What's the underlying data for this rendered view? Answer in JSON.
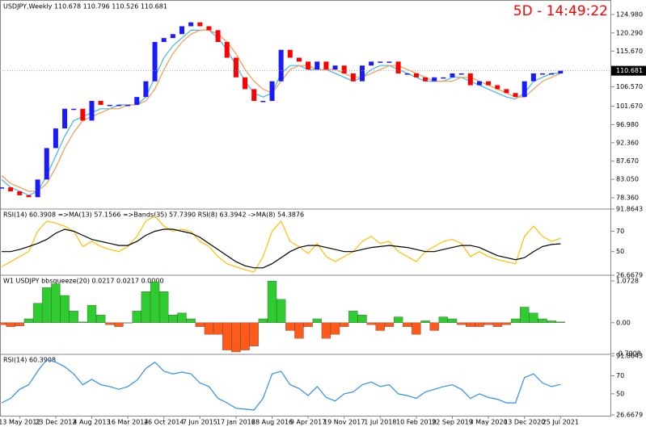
{
  "chart_data": [
    {
      "type": "candlestick",
      "title": "USDJPY,Weekly 110.678 110.796 110.526 110.681",
      "annotation": "5D - 14:49:22",
      "series": [
        {
          "up_color": "#1a1aff",
          "down_color": "#ff0000",
          "values": [
            81,
            80,
            79,
            78.5,
            83,
            91,
            96,
            101,
            101,
            98,
            103,
            102,
            102,
            102,
            102,
            104,
            108,
            118,
            119,
            120,
            122,
            123,
            122,
            121,
            118,
            114,
            109,
            106,
            103,
            103,
            108,
            116,
            114,
            113,
            111,
            113,
            111,
            112,
            110,
            108,
            112,
            113,
            113,
            113,
            110,
            110,
            109,
            108,
            109,
            109,
            110,
            110,
            107,
            108,
            107,
            106,
            105,
            104,
            108,
            110,
            110,
            110,
            110.7
          ]
        },
        {
          "color": "#3fb6ee",
          "values": [
            83,
            81,
            80,
            79,
            80,
            84,
            89,
            94,
            98,
            99,
            100,
            101,
            101,
            102,
            102,
            102,
            104,
            109,
            114,
            117,
            119,
            121,
            121,
            121,
            119,
            116,
            112,
            108,
            105,
            104,
            105,
            110,
            112,
            112,
            111,
            111,
            111,
            110,
            109,
            108,
            109,
            111,
            112,
            112,
            111,
            110,
            109,
            108,
            108,
            108,
            109,
            109,
            108,
            107,
            106,
            105,
            104,
            103.5,
            105,
            108,
            109,
            110,
            110
          ]
        },
        {
          "color": "#f39a4c",
          "values": [
            84,
            82,
            81,
            80,
            80,
            82,
            86,
            91,
            95,
            98,
            99,
            100,
            101,
            101,
            102,
            102,
            103,
            106,
            111,
            115,
            118,
            120,
            121,
            121,
            120,
            118,
            115,
            111,
            108,
            106,
            105,
            108,
            111,
            112,
            112,
            111,
            111,
            111,
            110,
            109,
            109,
            110,
            111,
            112,
            112,
            111,
            110,
            109,
            108,
            108,
            108,
            109,
            109,
            108,
            107,
            106,
            105,
            104,
            104,
            106,
            108,
            109,
            110
          ]
        }
      ],
      "ylim": [
        75.69,
        128.68
      ],
      "yticks": [
        {
          "value": 124.98,
          "label": "124.980"
        },
        {
          "value": 120.29,
          "label": "120.290"
        },
        {
          "value": 115.67,
          "label": "115.670"
        },
        {
          "value": 106.57,
          "label": "106.570"
        },
        {
          "value": 101.67,
          "label": "101.670"
        },
        {
          "value": 96.98,
          "label": "96.980"
        },
        {
          "value": 92.36,
          "label": "92.360"
        },
        {
          "value": 87.67,
          "label": "87.670"
        },
        {
          "value": 83.05,
          "label": "83.050"
        },
        {
          "value": 78.36,
          "label": "78.360"
        }
      ],
      "last_price": {
        "value": 110.681,
        "label": "110.681"
      }
    },
    {
      "type": "line",
      "title": "RSI(14) 60.3908 =>MA(13) 57.1566 =>Bands(35) 57.7390 RSI(8) 63.3942 ->MA(8) 54.3876",
      "series": [
        {
          "color": "#ffc000",
          "values": [
            35,
            40,
            45,
            50,
            70,
            80,
            78,
            75,
            70,
            55,
            60,
            55,
            52,
            50,
            55,
            65,
            80,
            85,
            75,
            70,
            72,
            70,
            60,
            55,
            45,
            38,
            35,
            32,
            30,
            45,
            70,
            80,
            60,
            55,
            48,
            58,
            45,
            40,
            45,
            50,
            60,
            65,
            58,
            60,
            50,
            45,
            40,
            50,
            55,
            60,
            62,
            58,
            45,
            50,
            45,
            42,
            40,
            38,
            65,
            75,
            65,
            60,
            63
          ]
        },
        {
          "color": "#000000",
          "values": [
            50,
            50,
            52,
            55,
            58,
            62,
            68,
            72,
            70,
            66,
            62,
            60,
            58,
            56,
            56,
            60,
            66,
            70,
            72,
            72,
            70,
            68,
            64,
            58,
            52,
            46,
            40,
            36,
            34,
            34,
            38,
            44,
            50,
            54,
            56,
            56,
            54,
            52,
            50,
            50,
            52,
            54,
            55,
            56,
            55,
            54,
            52,
            50,
            50,
            52,
            54,
            56,
            56,
            54,
            50,
            46,
            44,
            42,
            44,
            50,
            55,
            57,
            57.7
          ]
        }
      ],
      "ylim": [
        26.6679,
        91.8643
      ],
      "yticks": [
        91.8643,
        70,
        50,
        26.6679
      ]
    },
    {
      "type": "histogram",
      "title": "W1 USDJPY bbsqueeze(20) 0.0217 0.0217 0.0000",
      "pos_color": "#2ecc2e",
      "neg_color": "#ff5a1a",
      "values": [
        -0.05,
        -0.1,
        -0.08,
        0.1,
        0.5,
        0.9,
        1.0,
        0.7,
        0.3,
        0.02,
        0.45,
        0.2,
        -0.05,
        -0.1,
        0.0,
        0.3,
        0.8,
        1.05,
        0.8,
        0.2,
        0.25,
        0.1,
        -0.1,
        -0.3,
        -0.3,
        -0.7,
        -0.75,
        -0.7,
        -0.6,
        0.1,
        1.07,
        0.6,
        -0.2,
        -0.4,
        -0.1,
        0.1,
        -0.4,
        -0.3,
        -0.1,
        0.3,
        0.2,
        -0.05,
        -0.2,
        -0.1,
        0.15,
        -0.1,
        -0.3,
        0.05,
        -0.2,
        0.15,
        0.1,
        -0.05,
        -0.1,
        -0.1,
        -0.05,
        -0.1,
        -0.05,
        0.1,
        0.4,
        0.25,
        0.1,
        0.05,
        0.02
      ],
      "ylim": [
        -0.7908,
        1.0728
      ],
      "yticks": [
        1.0728,
        {
          "value": 0,
          "label": "0.00"
        },
        -0.7908
      ]
    },
    {
      "type": "line",
      "title": "RSI(14) 60.3908",
      "series": [
        {
          "color": "#2f8fe8",
          "values": [
            40,
            45,
            55,
            60,
            75,
            88,
            85,
            80,
            72,
            60,
            66,
            60,
            58,
            55,
            58,
            65,
            78,
            85,
            75,
            72,
            74,
            72,
            62,
            58,
            45,
            40,
            34,
            33,
            32,
            45,
            72,
            75,
            60,
            56,
            48,
            58,
            46,
            42,
            50,
            52,
            60,
            63,
            58,
            60,
            50,
            48,
            45,
            52,
            55,
            58,
            60,
            55,
            45,
            50,
            46,
            44,
            40,
            40,
            68,
            72,
            62,
            58,
            60.39
          ]
        }
      ],
      "ylim": [
        26.6679,
        91.8643
      ],
      "yticks": [
        91.8643,
        70,
        50,
        26.6679
      ],
      "categories": [
        null,
        null,
        "13 May 2012",
        null,
        null,
        null,
        "23 Dec 2012",
        null,
        null,
        null,
        "4 Aug 2013",
        null,
        null,
        null,
        "16 Mar 2014",
        null,
        null,
        null,
        "26 Oct 2014",
        null,
        null,
        null,
        "7 Jun 2015",
        null,
        null,
        null,
        "17 Jan 2016",
        null,
        null,
        null,
        "28 Aug 2016",
        null,
        null,
        null,
        "9 Apr 2017",
        null,
        null,
        null,
        "19 Nov 2017",
        null,
        null,
        null,
        "1 Jul 2018",
        null,
        null,
        null,
        "10 Feb 2019",
        null,
        null,
        null,
        "22 Sep 2019",
        null,
        null,
        null,
        "3 May 2020",
        null,
        null,
        null,
        "13 Dec 2020",
        null,
        null,
        null,
        "25 Jul 2021"
      ]
    }
  ]
}
